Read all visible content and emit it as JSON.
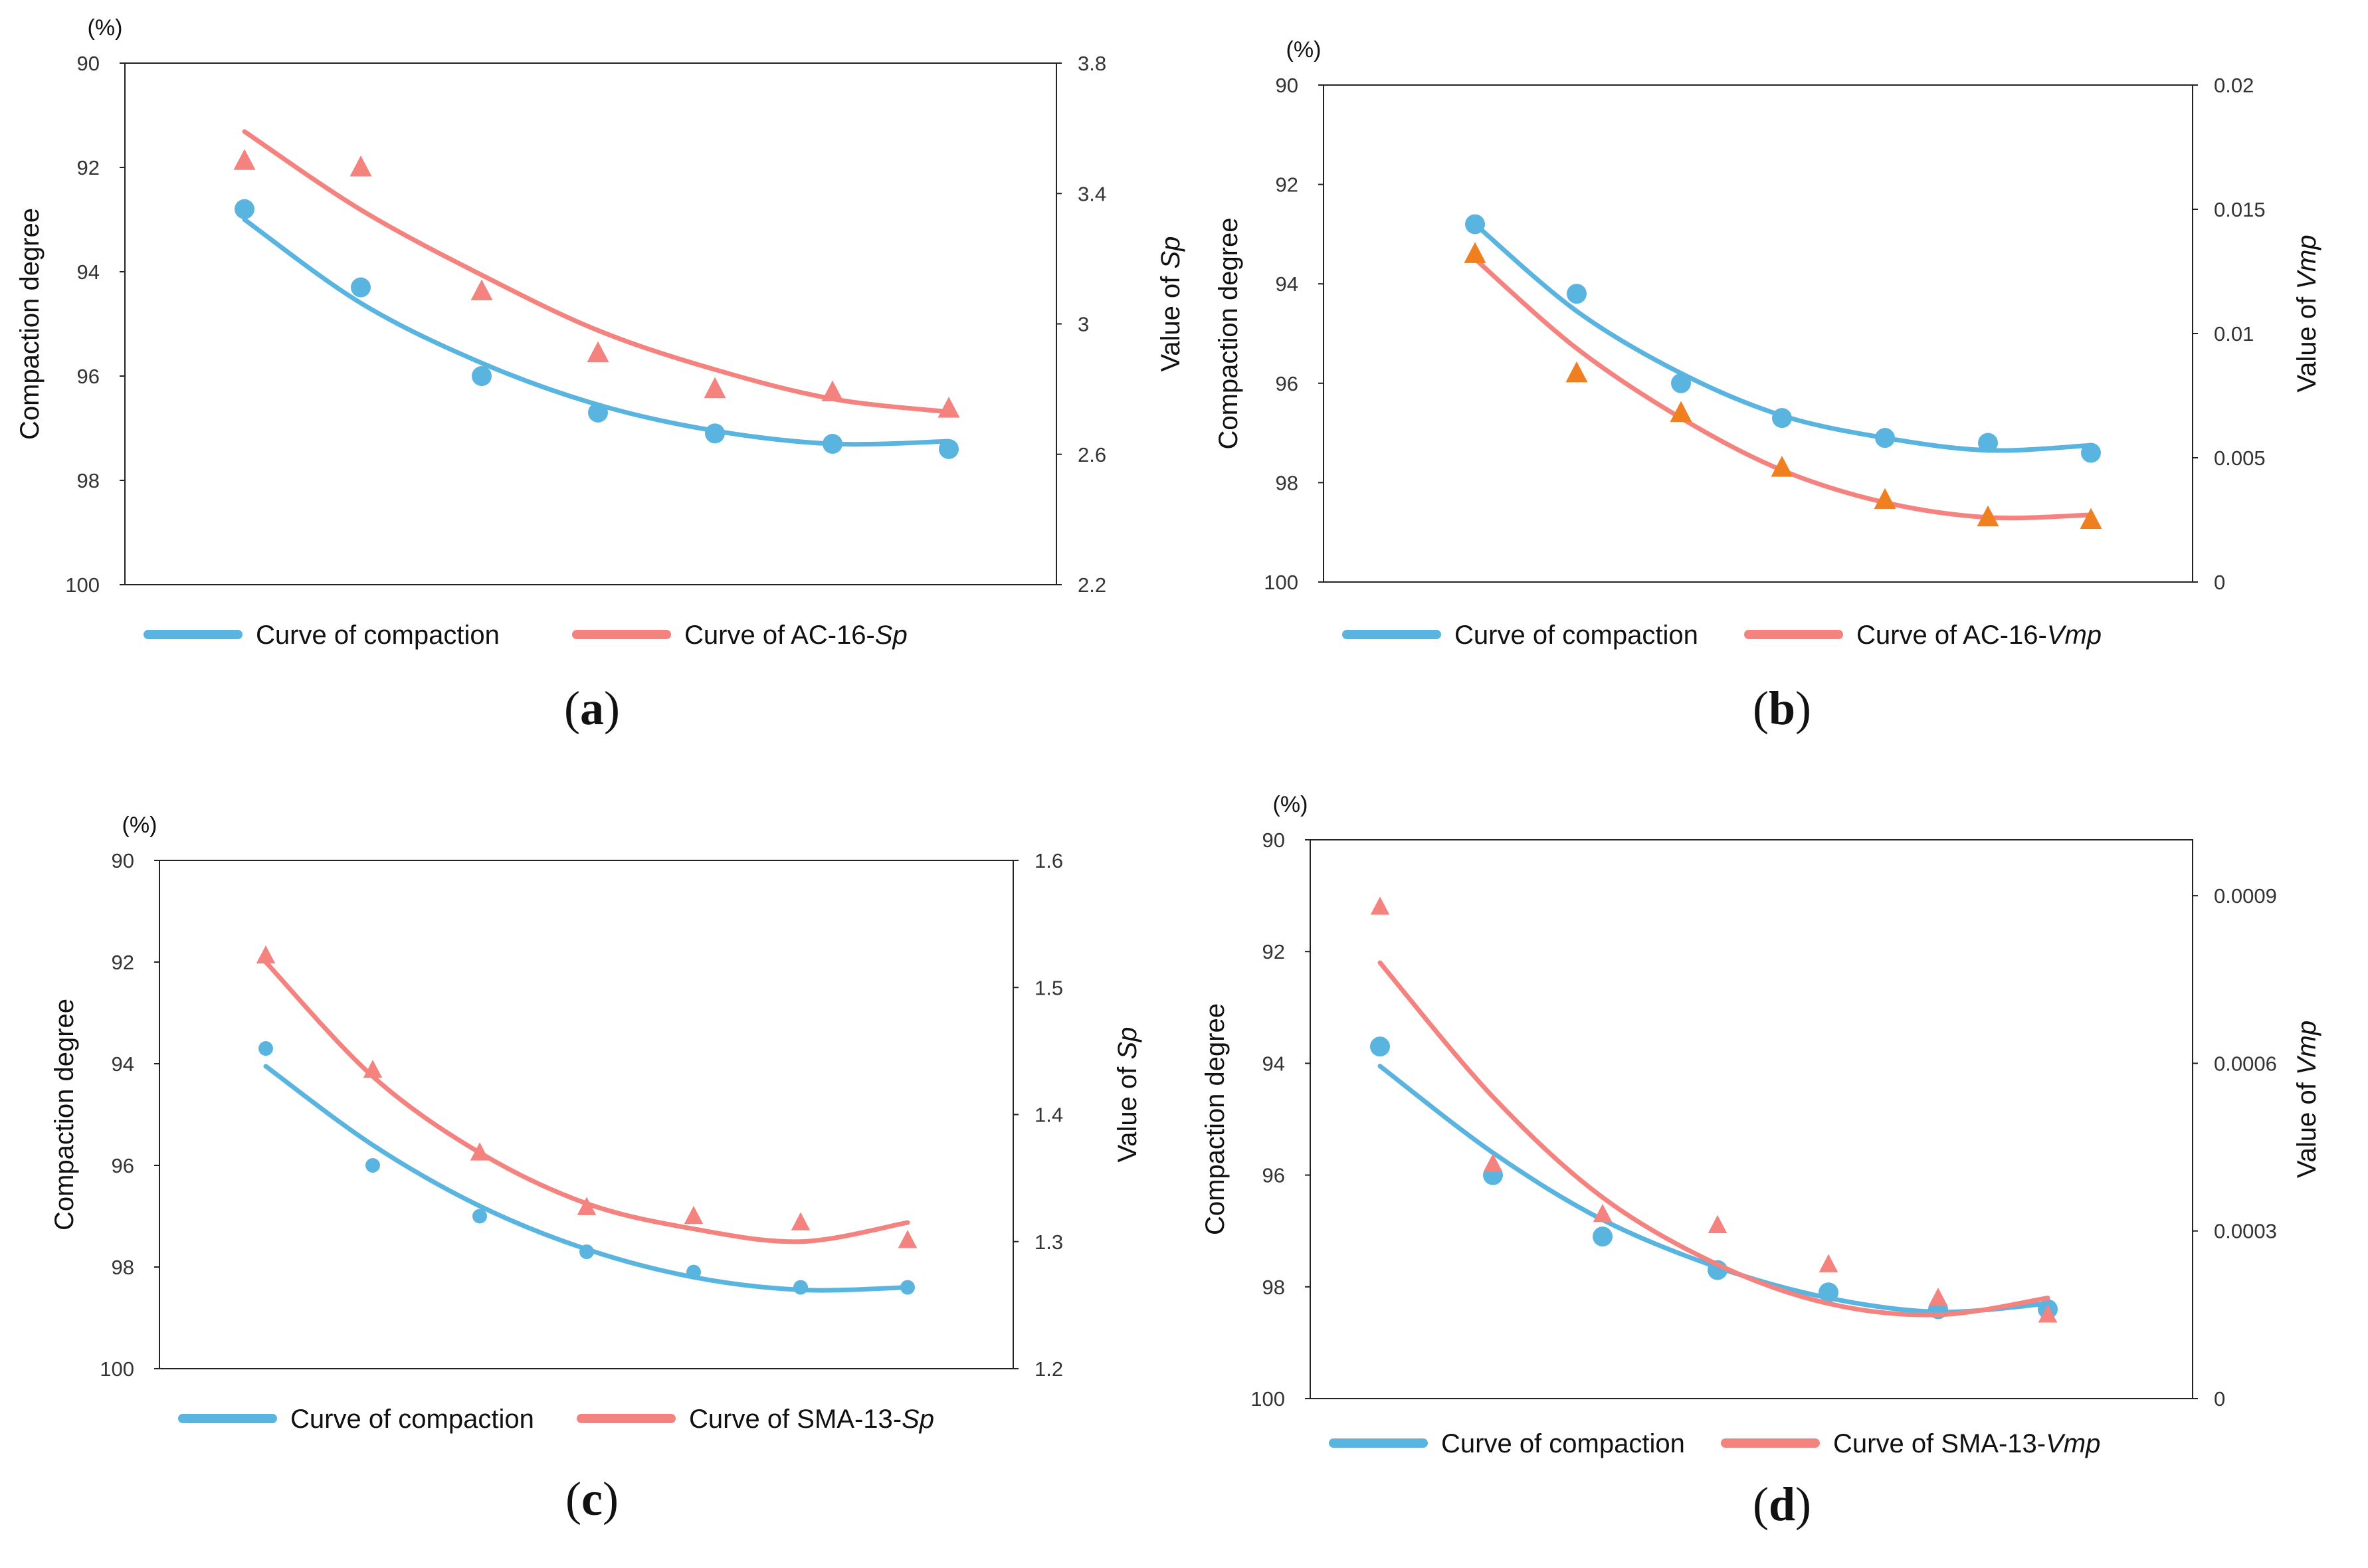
{
  "chart_data": [
    {
      "id": "a",
      "type": "line",
      "caption": "a",
      "unit_label": "(%)",
      "xlabel": "",
      "ylabel": "Compaction degree",
      "y2label_prefix": "Value of ",
      "y2label_var": "Sp",
      "ylim": [
        90,
        100
      ],
      "y_ticks": [
        "90",
        "92",
        "94",
        "96",
        "98",
        "100"
      ],
      "y_inverted": true,
      "y2lim": [
        2.2,
        3.8
      ],
      "y2_ticks": [
        "2.2",
        "2.6",
        "3",
        "3.4",
        "3.8"
      ],
      "x": [
        1,
        2,
        3,
        4,
        5,
        6,
        7
      ],
      "series": [
        {
          "name": "Curve of compaction",
          "axis": "left",
          "marker": "circle",
          "color": "#5ab4e0",
          "marker_color": "#5ab4e0",
          "values": [
            92.8,
            94.3,
            96.0,
            96.7,
            97.1,
            97.3,
            97.4
          ],
          "fit": [
            93.0,
            94.6,
            95.75,
            96.55,
            97.05,
            97.3,
            97.25
          ]
        },
        {
          "name_prefix": "Curve of AC-16-",
          "name_var": "Sp",
          "axis": "right",
          "marker": "triangle",
          "color": "#f4827f",
          "marker_color": "#f4827f",
          "values": [
            3.5,
            3.48,
            3.1,
            2.91,
            2.8,
            2.79,
            2.74
          ],
          "fit": [
            3.59,
            3.35,
            3.15,
            2.98,
            2.86,
            2.77,
            2.73
          ]
        }
      ]
    },
    {
      "id": "b",
      "type": "line",
      "caption": "b",
      "unit_label": "(%)",
      "xlabel": "",
      "ylabel": "Compaction degree",
      "y2label_prefix": "Value of ",
      "y2label_var": "Vmp",
      "ylim": [
        90,
        100
      ],
      "y_ticks": [
        "90",
        "92",
        "94",
        "96",
        "98",
        "100"
      ],
      "y_inverted": true,
      "y2lim": [
        0,
        0.02
      ],
      "y2_ticks": [
        "0",
        "0.005",
        "0.01",
        "0.015",
        "0.02"
      ],
      "x": [
        1,
        2,
        3,
        4,
        5,
        6,
        7
      ],
      "series": [
        {
          "name": "Curve of compaction",
          "axis": "left",
          "marker": "circle",
          "color": "#5ab4e0",
          "marker_color": "#5ab4e0",
          "values": [
            92.8,
            94.2,
            96.0,
            96.7,
            97.1,
            97.2,
            97.4
          ],
          "fit": [
            92.8,
            94.55,
            95.8,
            96.65,
            97.1,
            97.35,
            97.25
          ]
        },
        {
          "name_prefix": "Curve of AC-16-",
          "name_var": "Vmp",
          "axis": "right",
          "marker": "triangle",
          "color": "#f4827f",
          "marker_color": "#f07f1f",
          "values": [
            0.0132,
            0.0084,
            0.0068,
            0.0046,
            0.0033,
            0.0026,
            0.0025
          ],
          "fit": [
            0.013,
            0.0094,
            0.0066,
            0.0045,
            0.0032,
            0.0026,
            0.0027
          ]
        }
      ]
    },
    {
      "id": "c",
      "type": "line",
      "caption": "c",
      "unit_label": "(%)",
      "xlabel": "",
      "ylabel": "Compaction degree",
      "y2label_prefix": "Value of ",
      "y2label_var": "Sp",
      "ylim": [
        90,
        100
      ],
      "y_ticks": [
        "90",
        "92",
        "94",
        "96",
        "98",
        "100"
      ],
      "y_inverted": true,
      "y2lim": [
        1.2,
        1.6
      ],
      "y2_ticks": [
        "1.2",
        "1.3",
        "1.4",
        "1.5",
        "1.6"
      ],
      "x": [
        1,
        2,
        3,
        4,
        5,
        6,
        7
      ],
      "series": [
        {
          "name": "Curve of compaction",
          "axis": "left",
          "marker": "circle",
          "color": "#5ab4e0",
          "marker_color": "#5ab4e0",
          "values": [
            93.7,
            96.0,
            97.0,
            97.7,
            98.1,
            98.4,
            98.4
          ],
          "fit": [
            94.05,
            95.6,
            96.8,
            97.65,
            98.2,
            98.45,
            98.4
          ]
        },
        {
          "name_prefix": "Curve of SMA-13-",
          "name_var": "Sp",
          "axis": "right",
          "marker": "triangle",
          "color": "#f4827f",
          "marker_color": "#f4827f",
          "values": [
            1.525,
            1.435,
            1.37,
            1.327,
            1.32,
            1.315,
            1.301
          ],
          "fit": [
            1.52,
            1.43,
            1.37,
            1.33,
            1.31,
            1.3,
            1.315
          ]
        }
      ]
    },
    {
      "id": "d",
      "type": "line",
      "caption": "d",
      "unit_label": "(%)",
      "xlabel": "",
      "ylabel": "Compaction degree",
      "y2label_prefix": "Value of ",
      "y2label_var": "Vmp",
      "ylim": [
        90,
        100
      ],
      "y_ticks": [
        "90",
        "92",
        "94",
        "96",
        "98",
        "100"
      ],
      "y_inverted": true,
      "y2lim": [
        0,
        0.001
      ],
      "y2_ticks": [
        "0",
        "0.0003",
        "0.0006",
        "0.0009"
      ],
      "x": [
        1,
        2,
        3,
        4,
        5,
        6,
        7
      ],
      "series": [
        {
          "name": "Curve of compaction",
          "axis": "left",
          "marker": "circle",
          "color": "#5ab4e0",
          "marker_color": "#5ab4e0",
          "values": [
            93.7,
            96.0,
            97.1,
            97.7,
            98.1,
            98.4,
            98.4
          ],
          "fit": [
            94.05,
            95.6,
            96.8,
            97.65,
            98.2,
            98.45,
            98.3
          ]
        },
        {
          "name_prefix": "Curve of SMA-13-",
          "name_var": "Vmp",
          "axis": "right",
          "marker": "triangle",
          "color": "#f4827f",
          "marker_color": "#f4827f",
          "values": [
            0.00088,
            0.00042,
            0.00033,
            0.00031,
            0.00024,
            0.00018,
            0.00015
          ],
          "fit": [
            0.00078,
            0.00054,
            0.00036,
            0.00024,
            0.00017,
            0.00015,
            0.00018
          ]
        }
      ]
    }
  ]
}
